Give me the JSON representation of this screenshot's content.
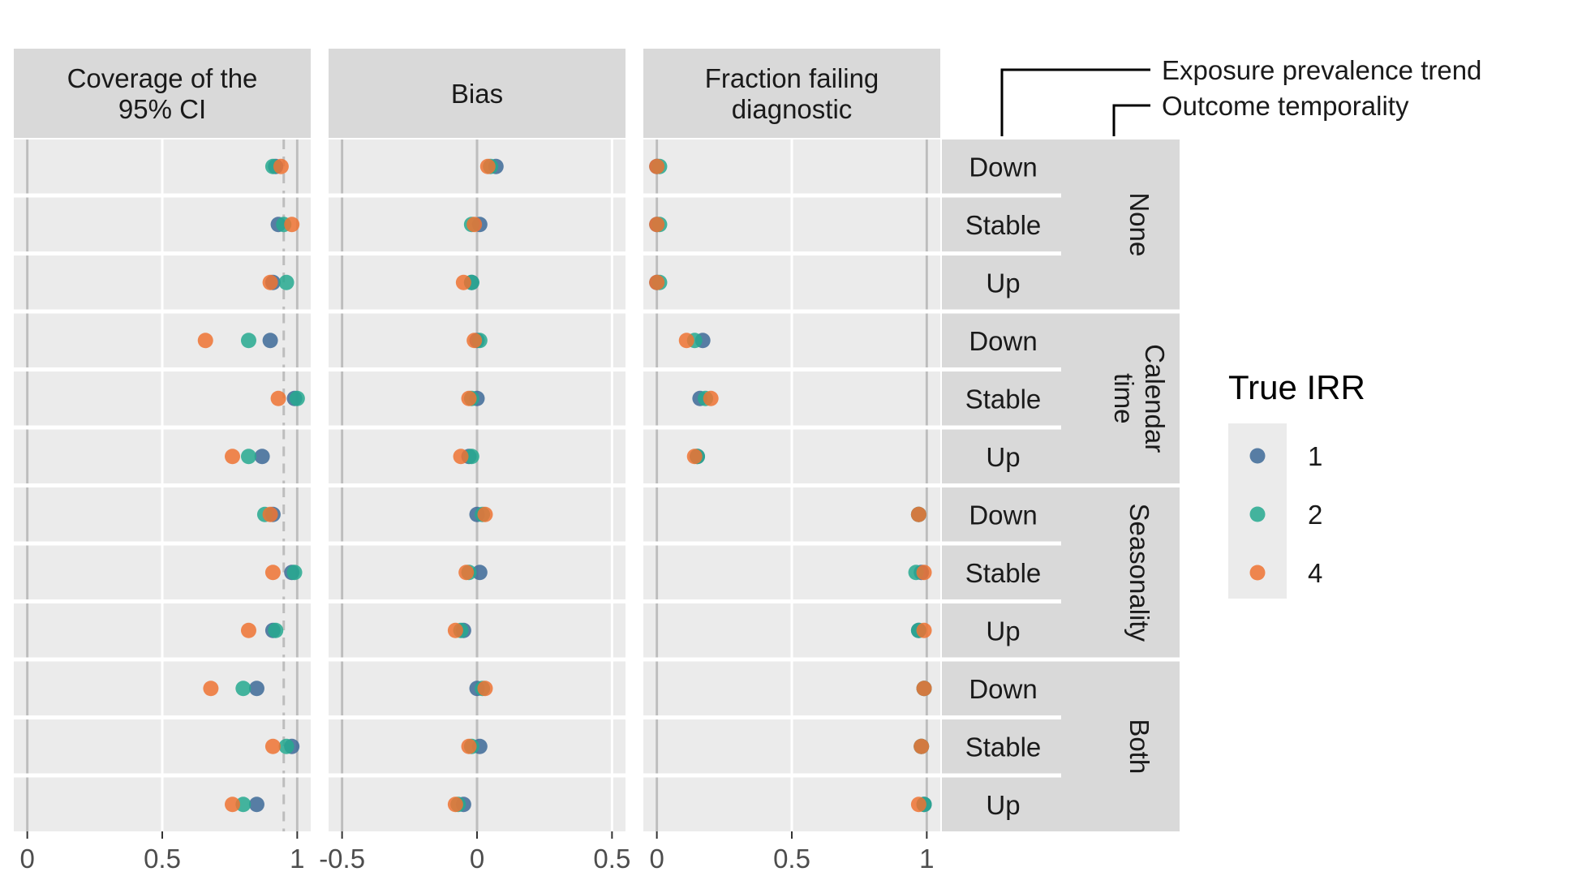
{
  "chart_data": {
    "type": "scatter",
    "description_free": true,
    "facet_columns": [
      {
        "key": "coverage",
        "title_lines": [
          "Coverage of the",
          "95% CI"
        ],
        "xlim": [
          -0.05,
          1.05
        ],
        "ticks": [
          0,
          0.5,
          1
        ],
        "tick_labels": [
          "0",
          "0.5",
          "1"
        ],
        "reference_solid": 0,
        "reference_solid_2": 1,
        "reference_dashed": 0.95
      },
      {
        "key": "bias",
        "title_lines": [
          "Bias"
        ],
        "xlim": [
          -0.55,
          0.55
        ],
        "ticks": [
          -0.5,
          0,
          0.5
        ],
        "tick_labels": [
          "-0.5",
          "0",
          "0.5"
        ],
        "reference_solid": -0.5,
        "reference_solid_2": 0
      },
      {
        "key": "fraction",
        "title_lines": [
          "Fraction failing",
          "diagnostic"
        ],
        "xlim": [
          -0.05,
          1.05
        ],
        "ticks": [
          0,
          0.5,
          1
        ],
        "tick_labels": [
          "0",
          "0.5",
          "1"
        ],
        "reference_solid": 0,
        "reference_solid_2": 1
      }
    ],
    "strip_header_labels": {
      "exposure": "Exposure prevalence trend",
      "outcome": "Outcome temporality"
    },
    "groups": [
      {
        "label": "None",
        "label_lines": [
          "None"
        ]
      },
      {
        "label": "Calendar time",
        "label_lines": [
          "Calendar",
          "time"
        ]
      },
      {
        "label": "Seasonality",
        "label_lines": [
          "Seasonality"
        ]
      },
      {
        "label": "Both",
        "label_lines": [
          "Both"
        ]
      }
    ],
    "trends": [
      "Down",
      "Stable",
      "Up"
    ],
    "legend": {
      "title": "True IRR",
      "entries": [
        {
          "label": "1",
          "color": "#3D6A98"
        },
        {
          "label": "2",
          "color": "#26A98F"
        },
        {
          "label": "4",
          "color": "#EE7333"
        }
      ]
    },
    "series": [
      {
        "name": "1",
        "coverage": [
          0.92,
          0.93,
          0.91,
          0.9,
          0.99,
          0.87,
          0.91,
          0.98,
          0.91,
          0.85,
          0.98,
          0.85
        ],
        "bias": [
          0.07,
          0.01,
          -0.02,
          0.0,
          0.0,
          -0.03,
          0.0,
          0.01,
          -0.05,
          0.0,
          0.01,
          -0.05
        ],
        "fraction": [
          0.0,
          0.0,
          0.0,
          0.17,
          0.16,
          0.15,
          0.97,
          0.98,
          0.97,
          0.99,
          0.98,
          0.99
        ]
      },
      {
        "name": "2",
        "coverage": [
          0.91,
          0.95,
          0.96,
          0.82,
          1.0,
          0.82,
          0.88,
          0.99,
          0.92,
          0.8,
          0.96,
          0.8
        ],
        "bias": [
          0.05,
          -0.02,
          -0.02,
          0.01,
          -0.02,
          -0.02,
          0.02,
          -0.03,
          -0.06,
          0.02,
          -0.02,
          -0.07
        ],
        "fraction": [
          0.01,
          0.01,
          0.01,
          0.14,
          0.18,
          0.15,
          0.97,
          0.96,
          0.97,
          0.99,
          0.98,
          0.99
        ]
      },
      {
        "name": "4",
        "coverage": [
          0.94,
          0.98,
          0.9,
          0.66,
          0.93,
          0.76,
          0.9,
          0.91,
          0.82,
          0.68,
          0.91,
          0.76
        ],
        "bias": [
          0.04,
          -0.01,
          -0.05,
          -0.01,
          -0.03,
          -0.06,
          0.03,
          -0.04,
          -0.08,
          0.03,
          -0.03,
          -0.08
        ],
        "fraction": [
          0.0,
          0.0,
          0.0,
          0.11,
          0.2,
          0.14,
          0.97,
          0.99,
          0.99,
          0.99,
          0.98,
          0.97
        ]
      }
    ]
  }
}
